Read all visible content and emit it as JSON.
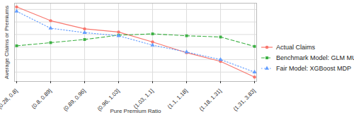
{
  "chart_data": {
    "type": "line",
    "x_label": "Pure Premium Ratio",
    "y_label": "Average Claims or Premiums",
    "categories": [
      "[0.28, 0.8]",
      "(0.8, 0.89]",
      "(0.89, 0.96]",
      "(0.96, 1.03]",
      "(1.03, 1.1]",
      "(1.1, 1.18]",
      "(1.18, 1.31]",
      "(1.31, 3.83]"
    ],
    "series": [
      {
        "name": "Actual Claims",
        "color": "#f8766d",
        "marker": "circle",
        "line_style": "solid",
        "values": [
          184,
          162,
          149,
          144,
          128,
          111,
          97,
          72
        ]
      },
      {
        "name": "Benchmark Model: GLM MU",
        "color": "#3cb043",
        "marker": "square",
        "line_style": "dashed",
        "values": [
          122,
          127,
          132,
          139,
          141,
          138,
          136,
          121
        ]
      },
      {
        "name": "Fair Model: XGBoost MDP",
        "color": "#619cff",
        "marker": "triangle",
        "line_style": "dotted",
        "values": [
          177,
          150,
          143,
          138,
          123,
          112,
          100,
          80
        ]
      }
    ],
    "ylim": [
      65,
      190
    ],
    "yticks": [
      80,
      100,
      120,
      140,
      160,
      180
    ],
    "grid": true,
    "tick_labels": "x",
    "legend": "right"
  }
}
